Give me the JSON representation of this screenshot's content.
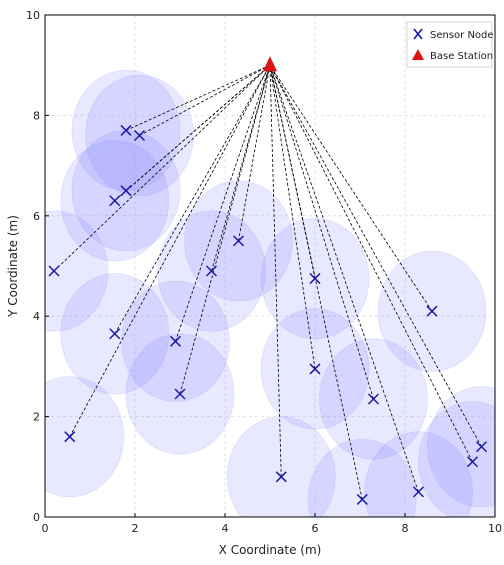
{
  "chart_data": {
    "type": "scatter",
    "title": "",
    "xlabel": "X Coordinate (m)",
    "ylabel": "Y Coordinate (m)",
    "xlim": [
      0,
      10
    ],
    "ylim": [
      0,
      10
    ],
    "xticks": [
      0,
      2,
      4,
      6,
      8,
      10
    ],
    "yticks": [
      0,
      2,
      4,
      6,
      8,
      10
    ],
    "grid": true,
    "legend": {
      "placement": "top-right",
      "entries": [
        {
          "label": "Sensor Node",
          "marker": "x",
          "color": "#1a1aa6"
        },
        {
          "label": "Base Station",
          "marker": "triangle",
          "color": "#e01010"
        }
      ]
    },
    "coverage_radius": 1.2,
    "coverage_color": "#8080ff",
    "link_style": "dashed-black",
    "base_station": {
      "name": "Base Station",
      "x": 5.0,
      "y": 9.0
    },
    "series": [
      {
        "name": "Sensor Node",
        "points": [
          {
            "x": 1.8,
            "y": 7.7
          },
          {
            "x": 2.1,
            "y": 7.6
          },
          {
            "x": 1.8,
            "y": 6.5
          },
          {
            "x": 1.55,
            "y": 6.3
          },
          {
            "x": 0.2,
            "y": 4.9
          },
          {
            "x": 4.3,
            "y": 5.5
          },
          {
            "x": 3.7,
            "y": 4.9
          },
          {
            "x": 6.0,
            "y": 4.75
          },
          {
            "x": 8.6,
            "y": 4.1
          },
          {
            "x": 1.55,
            "y": 3.65
          },
          {
            "x": 2.9,
            "y": 3.5
          },
          {
            "x": 3.0,
            "y": 2.45
          },
          {
            "x": 6.0,
            "y": 2.95
          },
          {
            "x": 7.3,
            "y": 2.35
          },
          {
            "x": 0.55,
            "y": 1.6
          },
          {
            "x": 5.25,
            "y": 0.8
          },
          {
            "x": 7.05,
            "y": 0.35
          },
          {
            "x": 8.3,
            "y": 0.5
          },
          {
            "x": 9.5,
            "y": 1.1
          },
          {
            "x": 9.7,
            "y": 1.4
          }
        ]
      }
    ]
  }
}
